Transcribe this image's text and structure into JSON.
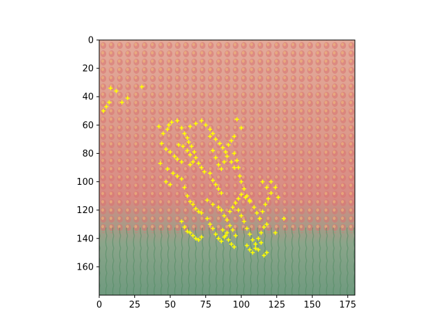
{
  "chart_data": {
    "type": "scatter",
    "title": "",
    "xlabel": "",
    "ylabel": "",
    "xlim": [
      0,
      180
    ],
    "ylim": [
      180,
      0
    ],
    "x_ticks": [
      0,
      25,
      50,
      75,
      100,
      125,
      150,
      175
    ],
    "y_ticks": [
      0,
      20,
      40,
      60,
      80,
      100,
      120,
      140,
      160
    ],
    "grid": false,
    "background_image": "tulip-field-photo",
    "marker_color": "#ffff00",
    "marker": "plus",
    "series": [
      {
        "points": [
          [
            3,
            50
          ],
          [
            5,
            47
          ],
          [
            7,
            44
          ],
          [
            8,
            34
          ],
          [
            12,
            36
          ],
          [
            16,
            44
          ],
          [
            20,
            41
          ],
          [
            30,
            33
          ],
          [
            42,
            61
          ],
          [
            45,
            66
          ],
          [
            48,
            63
          ],
          [
            49,
            60
          ],
          [
            51,
            58
          ],
          [
            44,
            73
          ],
          [
            47,
            77
          ],
          [
            50,
            79
          ],
          [
            53,
            82
          ],
          [
            55,
            84
          ],
          [
            58,
            86
          ],
          [
            43,
            87
          ],
          [
            48,
            91
          ],
          [
            52,
            94
          ],
          [
            55,
            96
          ],
          [
            58,
            98
          ],
          [
            47,
            100
          ],
          [
            50,
            102
          ],
          [
            55,
            57
          ],
          [
            58,
            62
          ],
          [
            60,
            66
          ],
          [
            62,
            69
          ],
          [
            63,
            72
          ],
          [
            65,
            75
          ],
          [
            67,
            79
          ],
          [
            68,
            83
          ],
          [
            70,
            87
          ],
          [
            72,
            90
          ],
          [
            74,
            93
          ],
          [
            64,
            61
          ],
          [
            68,
            59
          ],
          [
            72,
            57
          ],
          [
            75,
            60
          ],
          [
            78,
            63
          ],
          [
            80,
            66
          ],
          [
            82,
            70
          ],
          [
            85,
            73
          ],
          [
            87,
            76
          ],
          [
            89,
            79
          ],
          [
            91,
            74
          ],
          [
            93,
            71
          ],
          [
            95,
            68
          ],
          [
            56,
            74
          ],
          [
            59,
            75
          ],
          [
            62,
            78
          ],
          [
            64,
            81
          ],
          [
            66,
            86
          ],
          [
            64,
            88
          ],
          [
            78,
            68
          ],
          [
            80,
            78
          ],
          [
            82,
            83
          ],
          [
            84,
            88
          ],
          [
            86,
            91
          ],
          [
            88,
            86
          ],
          [
            90,
            82
          ],
          [
            93,
            86
          ],
          [
            95,
            90
          ],
          [
            78,
            94
          ],
          [
            80,
            99
          ],
          [
            82,
            102
          ],
          [
            84,
            105
          ],
          [
            86,
            108
          ],
          [
            97,
            56
          ],
          [
            100,
            62
          ],
          [
            95,
            80
          ],
          [
            97,
            85
          ],
          [
            98,
            90
          ],
          [
            99,
            96
          ],
          [
            100,
            100
          ],
          [
            102,
            105
          ],
          [
            104,
            110
          ],
          [
            106,
            114
          ],
          [
            60,
            104
          ],
          [
            62,
            110
          ],
          [
            64,
            114
          ],
          [
            66,
            116
          ],
          [
            68,
            119
          ],
          [
            70,
            121
          ],
          [
            72,
            122
          ],
          [
            76,
            113
          ],
          [
            80,
            116
          ],
          [
            84,
            118
          ],
          [
            86,
            120
          ],
          [
            88,
            124
          ],
          [
            90,
            127
          ],
          [
            92,
            131
          ],
          [
            94,
            134
          ],
          [
            96,
            138
          ],
          [
            58,
            128
          ],
          [
            60,
            132
          ],
          [
            62,
            135
          ],
          [
            64,
            136
          ],
          [
            66,
            138
          ],
          [
            68,
            140
          ],
          [
            70,
            141
          ],
          [
            72,
            139
          ],
          [
            76,
            126
          ],
          [
            78,
            130
          ],
          [
            80,
            133
          ],
          [
            82,
            137
          ],
          [
            84,
            140
          ],
          [
            86,
            142
          ],
          [
            88,
            139
          ],
          [
            90,
            136
          ],
          [
            98,
            120
          ],
          [
            100,
            124
          ],
          [
            102,
            128
          ],
          [
            104,
            133
          ],
          [
            106,
            137
          ],
          [
            108,
            141
          ],
          [
            110,
            144
          ],
          [
            112,
            148
          ],
          [
            114,
            143
          ],
          [
            104,
            145
          ],
          [
            106,
            148
          ],
          [
            108,
            150
          ],
          [
            110,
            147
          ],
          [
            112,
            140
          ],
          [
            114,
            136
          ],
          [
            116,
            132
          ],
          [
            118,
            130
          ],
          [
            109,
            118
          ],
          [
            111,
            122
          ],
          [
            113,
            126
          ],
          [
            115,
            121
          ],
          [
            117,
            116
          ],
          [
            119,
            112
          ],
          [
            121,
            108
          ],
          [
            115,
            100
          ],
          [
            118,
            104
          ],
          [
            121,
            100
          ],
          [
            124,
            104
          ],
          [
            126,
            111
          ],
          [
            130,
            126
          ],
          [
            124,
            136
          ],
          [
            92,
            121
          ],
          [
            94,
            118
          ],
          [
            96,
            115
          ],
          [
            98,
            112
          ],
          [
            100,
            109
          ],
          [
            103,
            111
          ],
          [
            106,
            113
          ],
          [
            87,
            134
          ],
          [
            89,
            138
          ],
          [
            91,
            141
          ],
          [
            93,
            144
          ],
          [
            95,
            146
          ],
          [
            118,
            150
          ],
          [
            116,
            152
          ]
        ]
      }
    ]
  }
}
